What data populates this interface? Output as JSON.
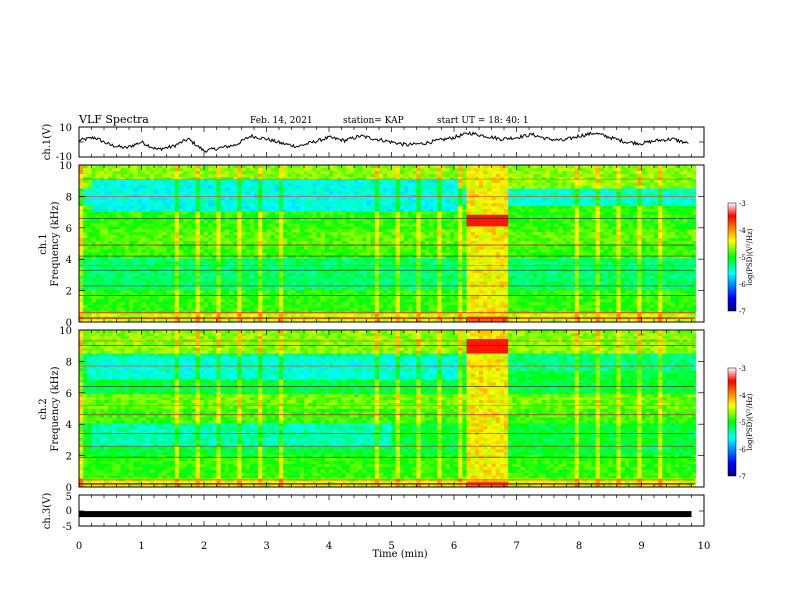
{
  "header": {
    "title": "VLF Spectra",
    "date": "Feb. 14, 2021",
    "station": "station= KAP",
    "start": "start  UT =   18: 40: 1"
  },
  "chart_data": [
    {
      "type": "line",
      "ylabel": "ch.1(V)",
      "xlim": [
        0,
        10
      ],
      "ylim": [
        -10,
        10
      ],
      "yticks": [
        "10",
        "-10"
      ],
      "series": [
        {
          "x": [
            0,
            0.25,
            0.5,
            0.75,
            1.0,
            1.25,
            1.5,
            1.75,
            2.0,
            2.25,
            2.5,
            2.75,
            3.0,
            3.25,
            3.5,
            3.75,
            4.0,
            4.25,
            4.5,
            4.75,
            5.0,
            5.25,
            5.5,
            5.75,
            6.0,
            6.25,
            6.5,
            6.75,
            7.0,
            7.25,
            7.5,
            7.75,
            8.0,
            8.25,
            8.5,
            8.75,
            9.0,
            9.25,
            9.5,
            9.75
          ],
          "y": [
            1,
            3,
            -2,
            -4,
            0,
            -5,
            -3,
            2,
            -6,
            -4,
            -2,
            4,
            2,
            -1,
            -3,
            0,
            3,
            1,
            4,
            2,
            0,
            -2,
            -1,
            1,
            3,
            6,
            4,
            2,
            3,
            5,
            2,
            1,
            4,
            6,
            3,
            0,
            -1,
            1,
            2,
            -1
          ]
        }
      ]
    },
    {
      "type": "heatmap",
      "ylabel": "ch.1",
      "ylabel2": "Frequency (kHz)",
      "xlim": [
        0,
        10
      ],
      "ylim": [
        0,
        10
      ],
      "yticks": [
        "0",
        "2",
        "4",
        "6",
        "8",
        "10"
      ],
      "colorbar": {
        "label": "log(PSD)(V²/Hz)",
        "range": [
          -7,
          -3
        ],
        "ticks": [
          "-3",
          "-4",
          "-5",
          "-6",
          "-7"
        ]
      },
      "burst_interval_min": [
        6.2,
        6.85
      ]
    },
    {
      "type": "heatmap",
      "ylabel": "ch.2",
      "ylabel2": "Frequency (kHz)",
      "xlim": [
        0,
        10
      ],
      "ylim": [
        0,
        10
      ],
      "yticks": [
        "0",
        "2",
        "4",
        "6",
        "8",
        "10"
      ],
      "colorbar": {
        "label": "log(PSD)(V²/Hz)",
        "range": [
          -7,
          -3
        ],
        "ticks": [
          "-3",
          "-4",
          "-5",
          "-6",
          "-7"
        ]
      },
      "burst_interval_min": [
        6.2,
        6.85
      ]
    },
    {
      "type": "line",
      "ylabel": "ch.3(V)",
      "xlim": [
        0,
        10
      ],
      "ylim": [
        -5,
        5
      ],
      "yticks": [
        "5",
        "0",
        "-5"
      ],
      "series": [
        {
          "x": [
            0,
            9.8
          ],
          "y": [
            -1,
            -1
          ]
        }
      ]
    }
  ],
  "xaxis": {
    "label": "Time (min)",
    "ticks": [
      "0",
      "1",
      "2",
      "3",
      "4",
      "5",
      "6",
      "7",
      "8",
      "9",
      "10"
    ]
  }
}
